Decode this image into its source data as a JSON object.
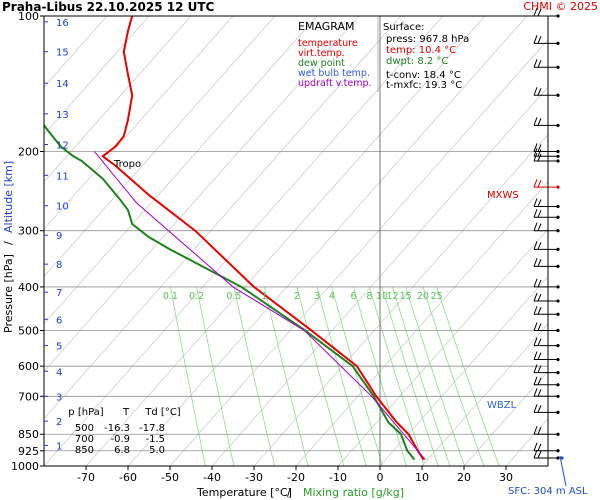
{
  "header": {
    "title": "Praha-Libus   22.10.2025 12 UTC",
    "copyright": "CHMI © 2025"
  },
  "chart_data": {
    "type": "line",
    "title": "EMAGRAM",
    "xlabel": "Temperature [°C]",
    "xlabel_sep": "/",
    "xlabel2": "Mixing ratio [g/kg]",
    "ylabel": "Pressure [hPa]",
    "ylabel_sep": "/",
    "ylabel2": "Altitude [km]",
    "x_range": [
      -80,
      40
    ],
    "y_range_hpa": [
      1000,
      100
    ],
    "y_scale": "log",
    "x_ticks": [
      -70,
      -60,
      -50,
      -40,
      -30,
      -20,
      -10,
      0,
      10,
      20,
      30
    ],
    "p_ticks": [
      1000,
      925,
      850,
      700,
      600,
      500,
      400,
      300,
      200,
      100
    ],
    "alt_ticks": [
      {
        "label": "1",
        "p": 900
      },
      {
        "label": "2",
        "p": 795
      },
      {
        "label": "3",
        "p": 700
      },
      {
        "label": "4",
        "p": 616
      },
      {
        "label": "5",
        "p": 540
      },
      {
        "label": "6",
        "p": 472
      },
      {
        "label": "7",
        "p": 411
      },
      {
        "label": "8",
        "p": 356
      },
      {
        "label": "9",
        "p": 307
      },
      {
        "label": "10",
        "p": 264
      },
      {
        "label": "11",
        "p": 226
      },
      {
        "label": "12",
        "p": 193
      },
      {
        "label": "13",
        "p": 165
      },
      {
        "label": "14",
        "p": 141
      },
      {
        "label": "15",
        "p": 120
      },
      {
        "label": "16",
        "p": 103
      }
    ],
    "mixing_ratio_labels": [
      "0.1",
      "0.2",
      "0.5",
      "1",
      "2",
      "3",
      "4",
      "6",
      "8",
      "10",
      "12",
      "15",
      "20",
      "25"
    ],
    "mixing_ratio_values": [
      0.1,
      0.2,
      0.5,
      1,
      2,
      3,
      4,
      6,
      8,
      10,
      12,
      15,
      20,
      25
    ],
    "legend": [
      {
        "label": "temperature",
        "color": "#e00000"
      },
      {
        "label": "virt.temp.",
        "color": "#e00000"
      },
      {
        "label": "dew point",
        "color": "#208020"
      },
      {
        "label": "wet bulb temp.",
        "color": "#3060e0"
      },
      {
        "label": "updraft v.temp.",
        "color": "#a000c0"
      }
    ],
    "surface": {
      "heading": "Surface:",
      "lines": [
        {
          "text": "press: 967.8 hPa",
          "color": "#000000"
        },
        {
          "text": "temp: 10.4 °C",
          "color": "#e00000"
        },
        {
          "text": "dwpt: 8.2 °C",
          "color": "#208020"
        }
      ],
      "tconv": "t-conv: 18.4 °C",
      "tmxfc": "t-mxfc: 19.3 °C"
    },
    "levels_table": {
      "headers": [
        "p [hPa]",
        "T",
        "Td [°C]"
      ],
      "rows": [
        [
          "500",
          "-16.3",
          "-17.8"
        ],
        [
          "700",
          "-0.9",
          "-1.5"
        ],
        [
          "850",
          "6.8",
          "5.0"
        ]
      ]
    },
    "annotations": {
      "tropo": "Tropo",
      "mxws": "MXWS",
      "wbzl": "WBZL",
      "sfc": "SFC: 304 m ASL"
    },
    "series": [
      {
        "name": "temperature",
        "color": "#e00000",
        "points": [
          [
            10.4,
            968
          ],
          [
            9,
            925
          ],
          [
            6.8,
            850
          ],
          [
            4,
            800
          ],
          [
            -0.9,
            700
          ],
          [
            -5.5,
            600
          ],
          [
            -16.3,
            500
          ],
          [
            -30,
            400
          ],
          [
            -44,
            300
          ],
          [
            -55,
            250
          ],
          [
            -63,
            215
          ],
          [
            -66,
            205
          ],
          [
            -63,
            195
          ],
          [
            -61,
            185
          ],
          [
            -60,
            170
          ],
          [
            -59,
            150
          ],
          [
            -60,
            135
          ],
          [
            -61,
            120
          ],
          [
            -60,
            108
          ],
          [
            -59,
            100
          ]
        ]
      },
      {
        "name": "dew point",
        "color": "#208020",
        "points": [
          [
            8.2,
            968
          ],
          [
            6.5,
            925
          ],
          [
            5.0,
            850
          ],
          [
            2,
            800
          ],
          [
            -1.5,
            700
          ],
          [
            -6.5,
            600
          ],
          [
            -17.8,
            500
          ],
          [
            -33,
            400
          ],
          [
            -50,
            330
          ],
          [
            -55,
            310
          ],
          [
            -59,
            290
          ],
          [
            -60,
            270
          ],
          [
            -62,
            255
          ],
          [
            -66,
            230
          ],
          [
            -71,
            210
          ],
          [
            -73,
            205
          ],
          [
            -76,
            195
          ],
          [
            -79,
            180
          ],
          [
            -81,
            170
          ]
        ]
      },
      {
        "name": "updraft v.temp.",
        "color": "#a000c0",
        "points": [
          [
            10.8,
            968
          ],
          [
            -2,
            700
          ],
          [
            -18,
            500
          ],
          [
            -35,
            400
          ],
          [
            -58,
            260
          ],
          [
            -68,
            200
          ]
        ]
      }
    ]
  }
}
